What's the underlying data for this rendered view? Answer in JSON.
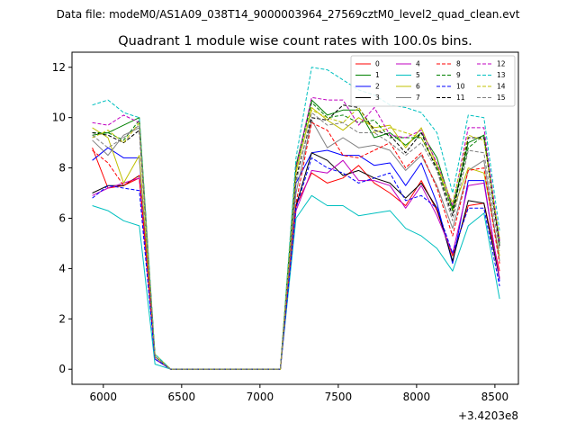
{
  "chart_data": {
    "type": "line",
    "suptitle": "Data file: modeM0/AS1A09_038T14_9000003964_27569cztM0_level2_quad_clean.evt",
    "title": "Quadrant 1 module wise count rates with 100.0s bins.",
    "xlabel": "",
    "ylabel": "",
    "x_offset_label": "+3.4203e8",
    "xlim": [
      5800,
      8650
    ],
    "ylim": [
      -0.6,
      12.6
    ],
    "xticks": [
      6000,
      6500,
      7000,
      7500,
      8000,
      8500
    ],
    "xtick_labels": [
      "6000",
      "6500",
      "7000",
      "7500",
      "8000",
      "8500"
    ],
    "yticks": [
      0,
      2,
      4,
      6,
      8,
      10,
      12
    ],
    "ytick_labels": [
      "0",
      "2",
      "4",
      "6",
      "8",
      "10",
      "12"
    ],
    "legend_position": "upper right",
    "x": [
      5930,
      6030,
      6130,
      6230,
      6330,
      6430,
      6530,
      6630,
      6730,
      6830,
      6930,
      7030,
      7130,
      7230,
      7330,
      7430,
      7530,
      7630,
      7730,
      7830,
      7930,
      8030,
      8130,
      8230,
      8330,
      8430,
      8530
    ],
    "series": [
      {
        "name": "0",
        "color": "#ff0000",
        "dash": "solid",
        "values": [
          8.8,
          7.2,
          7.3,
          7.6,
          0.5,
          0,
          0,
          0,
          0,
          0,
          0,
          0,
          0,
          6.5,
          7.8,
          7.4,
          7.6,
          8.1,
          7.4,
          7.0,
          6.5,
          7.5,
          6.3,
          4.5,
          6.5,
          6.6,
          3.9
        ]
      },
      {
        "name": "1",
        "color": "#008000",
        "dash": "solid",
        "values": [
          9.3,
          9.4,
          9.7,
          10.0,
          0.5,
          0,
          0,
          0,
          0,
          0,
          0,
          0,
          0,
          8.1,
          10.7,
          10.1,
          10.3,
          10.3,
          9.2,
          9.4,
          8.9,
          9.4,
          8.4,
          6.4,
          9.0,
          9.3,
          5.1
        ]
      },
      {
        "name": "2",
        "color": "#0000ff",
        "dash": "solid",
        "values": [
          8.3,
          8.8,
          8.4,
          8.4,
          0.4,
          0,
          0,
          0,
          0,
          0,
          0,
          0,
          0,
          7.4,
          8.6,
          8.7,
          8.5,
          8.5,
          8.1,
          8.2,
          7.3,
          8.2,
          6.6,
          4.2,
          7.5,
          7.5,
          3.5
        ]
      },
      {
        "name": "3",
        "color": "#000000",
        "dash": "solid",
        "values": [
          7.0,
          7.3,
          7.3,
          7.7,
          0.4,
          0,
          0,
          0,
          0,
          0,
          0,
          0,
          0,
          6.5,
          8.6,
          8.3,
          7.7,
          7.9,
          7.6,
          7.4,
          6.8,
          7.4,
          6.4,
          4.3,
          6.7,
          6.6,
          3.6
        ]
      },
      {
        "name": "4",
        "color": "#c000c0",
        "dash": "solid",
        "values": [
          6.9,
          7.2,
          7.4,
          7.6,
          0.4,
          0,
          0,
          0,
          0,
          0,
          0,
          0,
          0,
          6.3,
          7.9,
          7.8,
          8.3,
          7.5,
          7.5,
          7.3,
          6.4,
          7.3,
          6.1,
          4.6,
          7.3,
          7.4,
          3.6
        ]
      },
      {
        "name": "5",
        "color": "#00c0c0",
        "dash": "solid",
        "values": [
          6.5,
          6.3,
          5.9,
          5.7,
          0.2,
          0,
          0,
          0,
          0,
          0,
          0,
          0,
          0,
          6.0,
          6.9,
          6.5,
          6.5,
          6.1,
          6.2,
          6.3,
          5.6,
          5.3,
          4.8,
          3.9,
          5.7,
          6.2,
          2.8
        ]
      },
      {
        "name": "6",
        "color": "#c0c000",
        "dash": "solid",
        "values": [
          9.6,
          9.2,
          7.4,
          8.5,
          0.6,
          0,
          0,
          0,
          0,
          0,
          0,
          0,
          0,
          7.8,
          10.4,
          9.9,
          9.5,
          10.0,
          9.6,
          9.7,
          8.8,
          9.6,
          8.1,
          6.3,
          8.0,
          7.8,
          4.5
        ]
      },
      {
        "name": "7",
        "color": "#808080",
        "dash": "solid",
        "values": [
          9.1,
          8.5,
          9.3,
          9.6,
          0.5,
          0,
          0,
          0,
          0,
          0,
          0,
          0,
          0,
          7.0,
          9.9,
          8.8,
          9.2,
          8.8,
          8.9,
          8.7,
          7.9,
          8.5,
          7.3,
          5.6,
          7.9,
          8.3,
          4.3
        ]
      },
      {
        "name": "8",
        "color": "#ff0000",
        "dash": "dashed",
        "values": [
          8.7,
          8.2,
          7.3,
          7.7,
          0.5,
          0,
          0,
          0,
          0,
          0,
          0,
          0,
          0,
          6.6,
          9.8,
          9.5,
          8.5,
          8.4,
          8.7,
          9.0,
          8.0,
          8.6,
          7.2,
          5.3,
          7.9,
          8.0,
          4.2
        ]
      },
      {
        "name": "9",
        "color": "#008000",
        "dash": "dashed",
        "values": [
          9.4,
          9.4,
          9.1,
          9.9,
          0.5,
          0,
          0,
          0,
          0,
          0,
          0,
          0,
          0,
          8.0,
          10.6,
          10.0,
          10.1,
          9.8,
          9.9,
          9.2,
          9.2,
          9.2,
          8.0,
          6.3,
          8.8,
          9.3,
          5.0
        ]
      },
      {
        "name": "10",
        "color": "#0000ff",
        "dash": "dashed",
        "values": [
          6.8,
          7.3,
          7.2,
          7.1,
          0.4,
          0,
          0,
          0,
          0,
          0,
          0,
          0,
          0,
          6.4,
          8.4,
          8.0,
          7.8,
          7.4,
          7.6,
          7.8,
          6.7,
          6.9,
          6.4,
          4.6,
          6.4,
          6.4,
          3.3
        ]
      },
      {
        "name": "11",
        "color": "#000000",
        "dash": "dashed",
        "values": [
          9.4,
          9.3,
          9.0,
          9.5,
          0.5,
          0,
          0,
          0,
          0,
          0,
          0,
          0,
          0,
          7.6,
          10.0,
          9.9,
          10.5,
          10.4,
          9.5,
          9.3,
          8.6,
          9.4,
          7.9,
          6.1,
          9.2,
          9.2,
          4.9
        ]
      },
      {
        "name": "12",
        "color": "#c000c0",
        "dash": "dashed",
        "values": [
          9.8,
          9.7,
          10.1,
          9.8,
          0.5,
          0,
          0,
          0,
          0,
          0,
          0,
          0,
          0,
          8.0,
          10.8,
          10.7,
          10.7,
          9.7,
          10.4,
          9.3,
          9.2,
          9.5,
          8.2,
          6.5,
          9.6,
          9.6,
          5.1
        ]
      },
      {
        "name": "13",
        "color": "#00c0c0",
        "dash": "dashed",
        "values": [
          10.5,
          10.7,
          10.2,
          10.0,
          0.6,
          0,
          0,
          0,
          0,
          0,
          0,
          0,
          0,
          8.4,
          12.0,
          11.9,
          11.5,
          11.1,
          10.9,
          10.5,
          10.4,
          10.2,
          9.4,
          7.0,
          10.1,
          10.0,
          5.5
        ]
      },
      {
        "name": "14",
        "color": "#c0c000",
        "dash": "dashed",
        "values": [
          9.2,
          9.5,
          9.0,
          9.8,
          0.5,
          0,
          0,
          0,
          0,
          0,
          0,
          0,
          0,
          7.9,
          10.3,
          10.0,
          9.8,
          10.4,
          9.4,
          9.6,
          9.4,
          9.2,
          8.1,
          6.6,
          9.3,
          9.1,
          5.2
        ]
      },
      {
        "name": "15",
        "color": "#808080",
        "dash": "dashed",
        "values": [
          9.3,
          8.8,
          9.2,
          9.7,
          0.5,
          0,
          0,
          0,
          0,
          0,
          0,
          0,
          0,
          7.4,
          10.2,
          9.7,
          9.8,
          9.4,
          9.4,
          9.0,
          8.5,
          9.0,
          7.9,
          5.9,
          8.7,
          8.6,
          4.7
        ]
      }
    ]
  }
}
